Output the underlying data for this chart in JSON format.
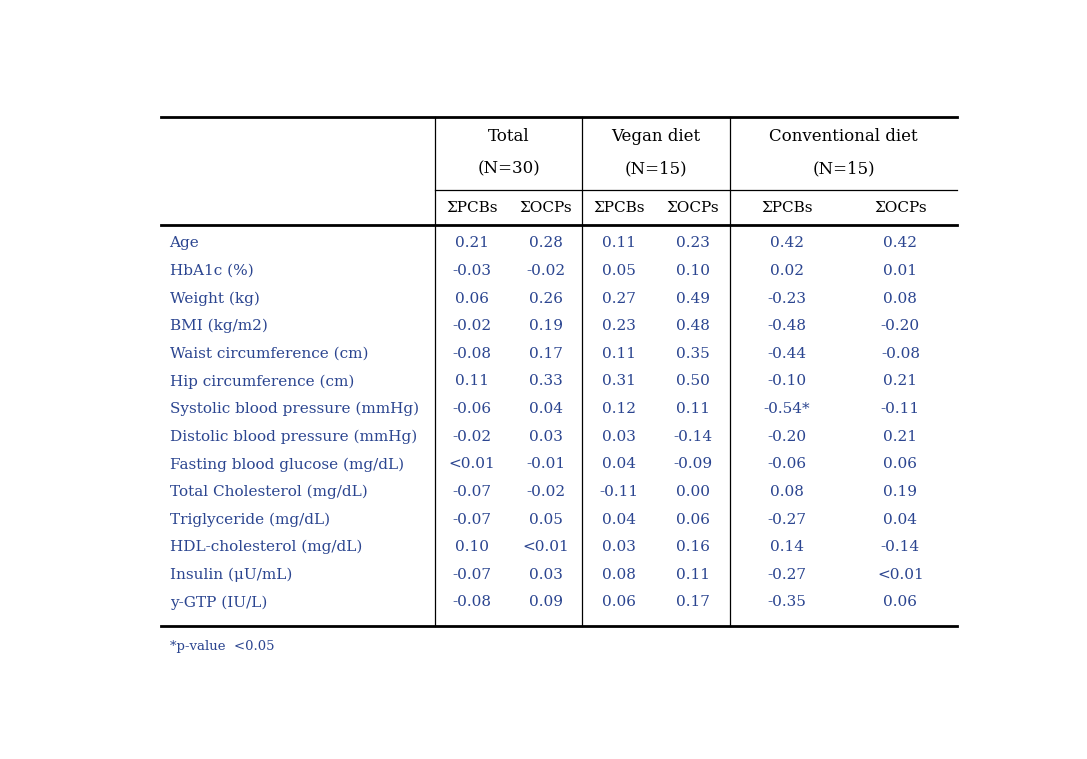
{
  "group_names": [
    "Total",
    "Vegan diet",
    "Conventional diet"
  ],
  "group_ns": [
    "(N=30)",
    "(N=15)",
    "(N=15)"
  ],
  "sub_labels": [
    "ΣPCBs",
    "ΣOCPs",
    "ΣPCBs",
    "ΣOCPs",
    "ΣPCBs",
    "ΣOCPs"
  ],
  "rows": [
    [
      "Age",
      "0.21",
      "0.28",
      "0.11",
      "0.23",
      "0.42",
      "0.42"
    ],
    [
      "HbA1c (%)",
      "-0.03",
      "-0.02",
      "0.05",
      "0.10",
      "0.02",
      "0.01"
    ],
    [
      "Weight (kg)",
      "0.06",
      "0.26",
      "0.27",
      "0.49",
      "-0.23",
      "0.08"
    ],
    [
      "BMI (kg/m2)",
      "-0.02",
      "0.19",
      "0.23",
      "0.48",
      "-0.48",
      "-0.20"
    ],
    [
      "Waist circumference (cm)",
      "-0.08",
      "0.17",
      "0.11",
      "0.35",
      "-0.44",
      "-0.08"
    ],
    [
      "Hip circumference (cm)",
      "0.11",
      "0.33",
      "0.31",
      "0.50",
      "-0.10",
      "0.21"
    ],
    [
      "Systolic blood pressure (mmHg)",
      "-0.06",
      "0.04",
      "0.12",
      "0.11",
      "-0.54*",
      "-0.11"
    ],
    [
      "Distolic blood pressure (mmHg)",
      "-0.02",
      "0.03",
      "0.03",
      "-0.14",
      "-0.20",
      "0.21"
    ],
    [
      "Fasting blood glucose (mg/dL)",
      "<0.01",
      "-0.01",
      "0.04",
      "-0.09",
      "-0.06",
      "0.06"
    ],
    [
      "Total Cholesterol (mg/dL)",
      "-0.07",
      "-0.02",
      "-0.11",
      "0.00",
      "0.08",
      "0.19"
    ],
    [
      "Triglyceride (mg/dL)",
      "-0.07",
      "0.05",
      "0.04",
      "0.06",
      "-0.27",
      "0.04"
    ],
    [
      "HDL-cholesterol (mg/dL)",
      "0.10",
      "<0.01",
      "0.03",
      "0.16",
      "0.14",
      "-0.14"
    ],
    [
      "Insulin (μU/mL)",
      "-0.07",
      "0.03",
      "0.08",
      "0.11",
      "-0.27",
      "<0.01"
    ],
    [
      "y-GTP (IU/L)",
      "-0.08",
      "0.09",
      "0.06",
      "0.17",
      "-0.35",
      "0.06"
    ]
  ],
  "footnote": "*p-value  <0.05",
  "text_color": "#2b4590",
  "black": "#000000",
  "bg_color": "#ffffff",
  "data_fontsize": 11.0,
  "header_fontsize": 12.0
}
